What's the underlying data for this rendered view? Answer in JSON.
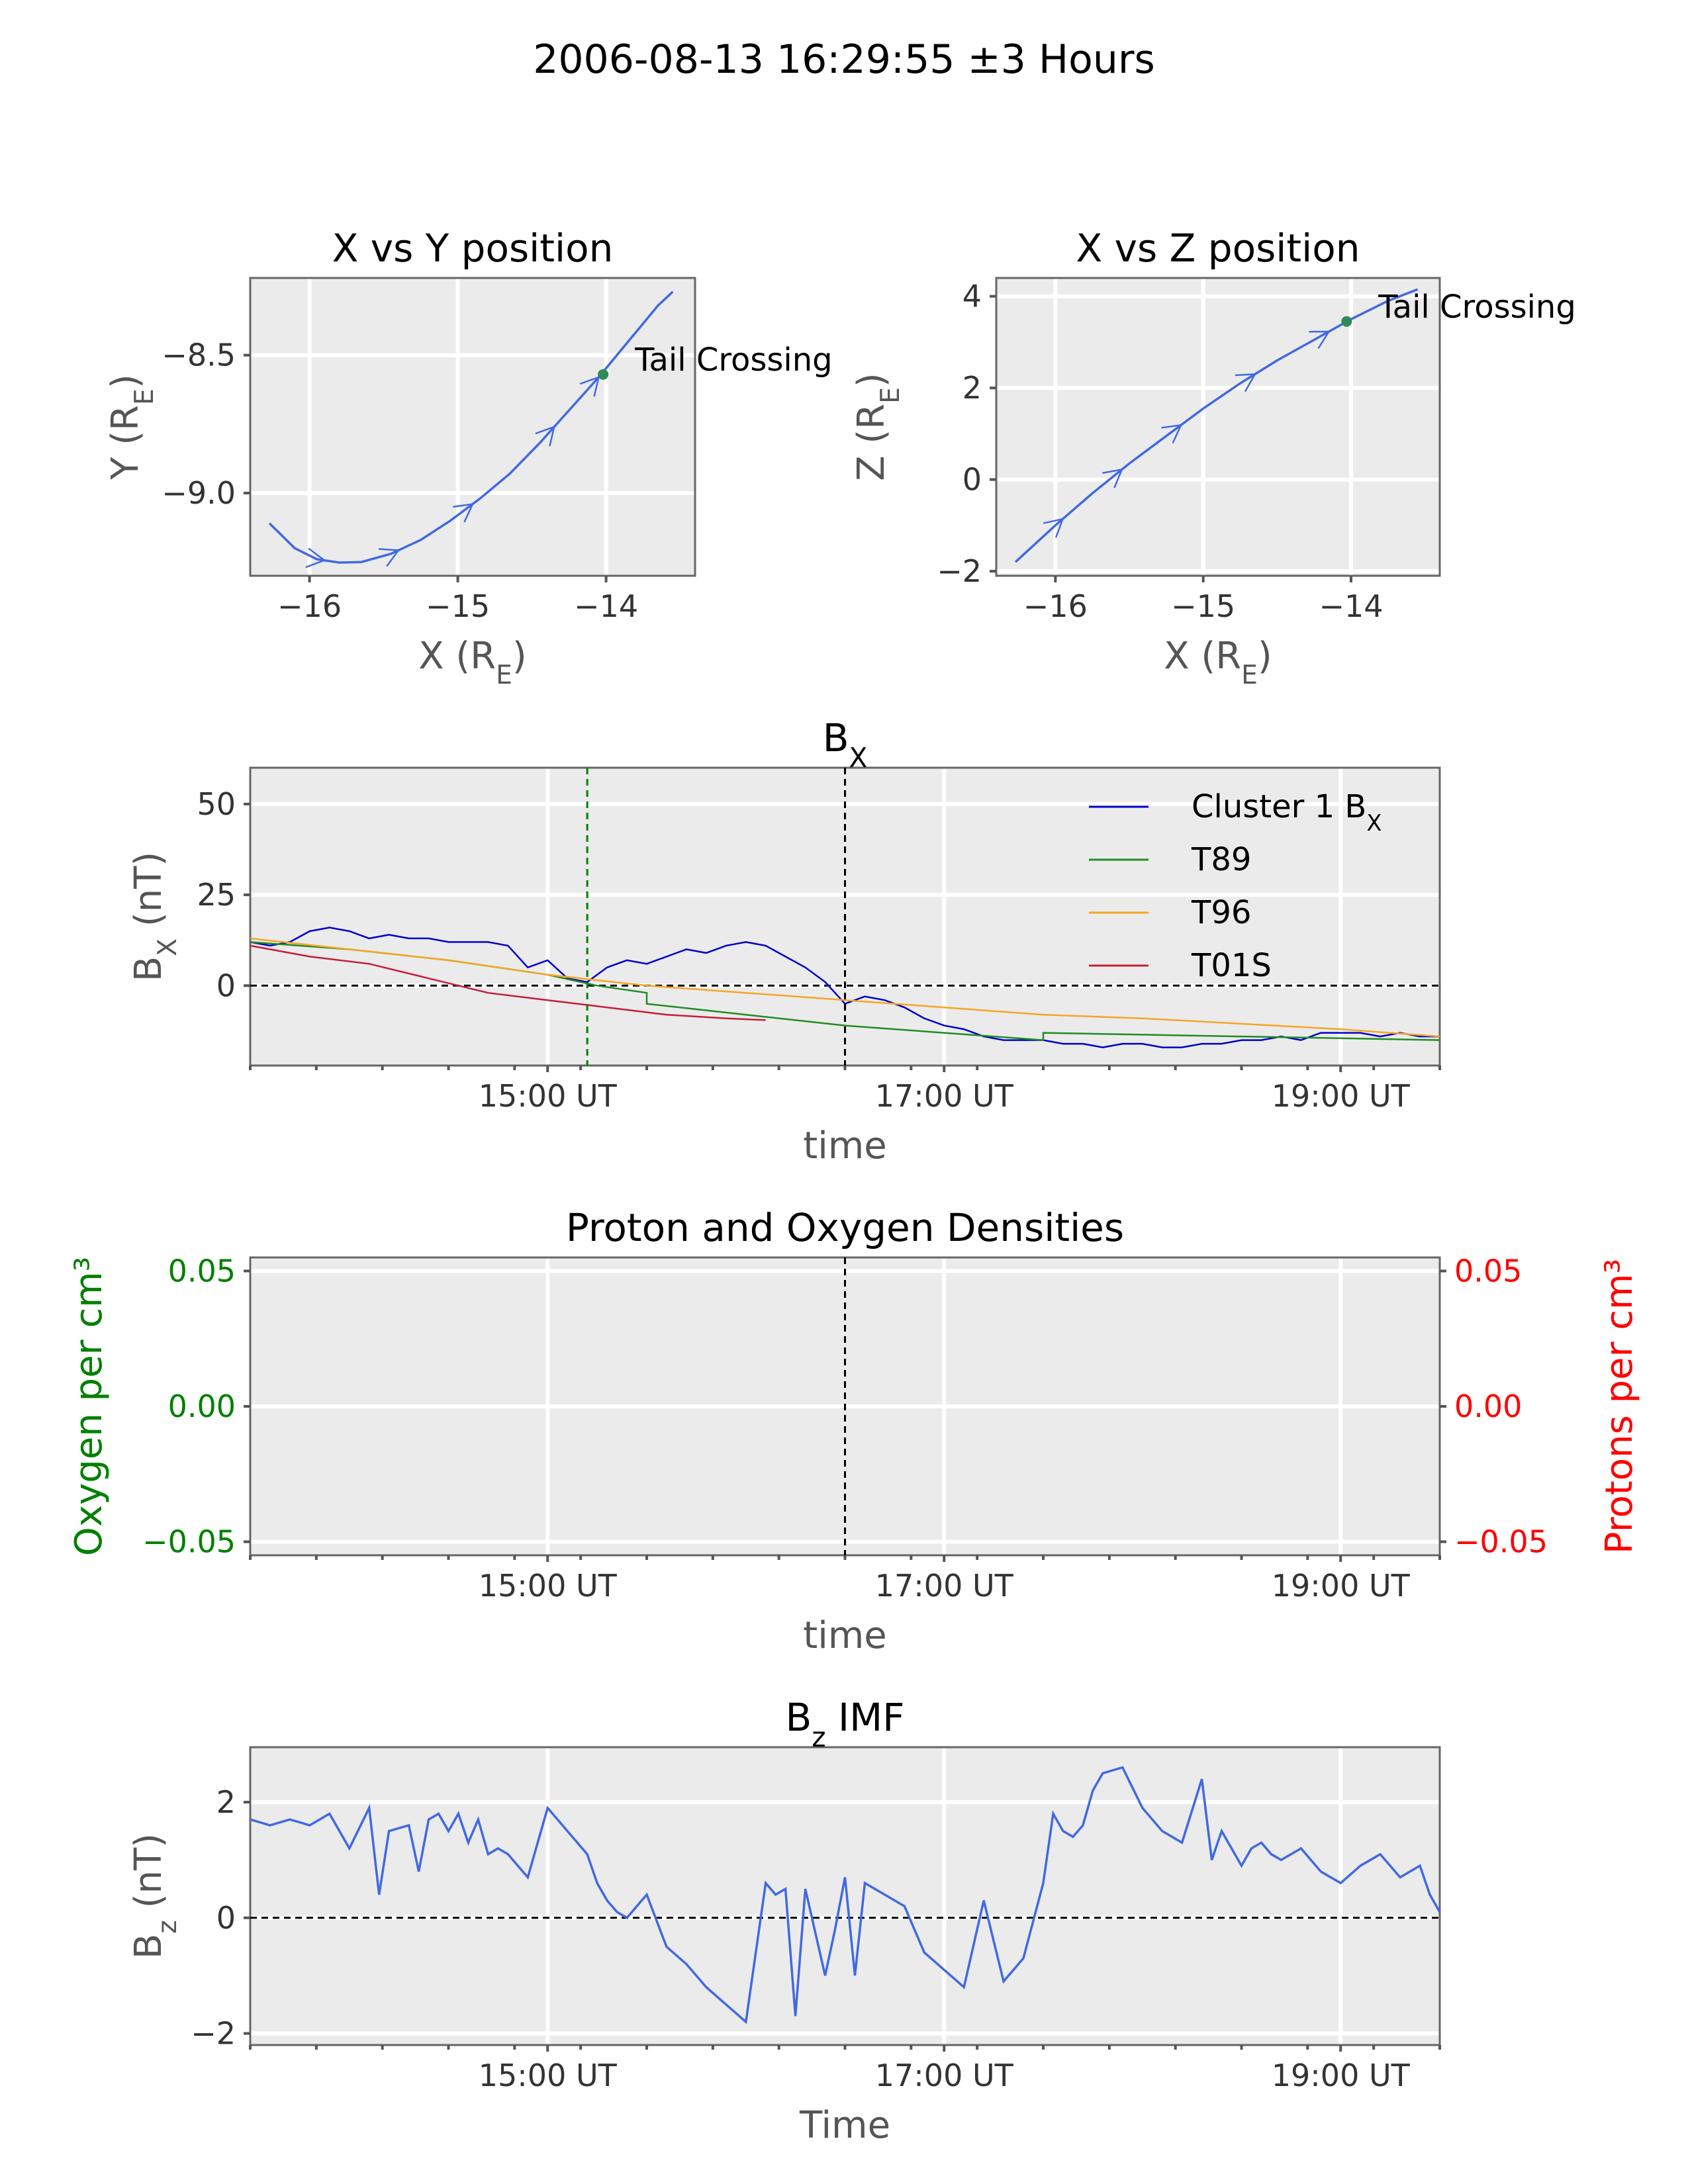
{
  "figure": {
    "suptitle": "2006-08-13 16:29:55 ±3 Hours"
  },
  "chart_data": [
    {
      "id": "xy",
      "type": "line",
      "title": "X vs Y position",
      "xlabel": "X (R_E)",
      "ylabel": "Y (R_E)",
      "xlim": [
        -16.4,
        -13.4
      ],
      "ylim": [
        -9.3,
        -8.22
      ],
      "xticks": [
        -16,
        -15,
        -14
      ],
      "xtick_labels": [
        "−16",
        "−15",
        "−14"
      ],
      "yticks": [
        -9.0,
        -8.5
      ],
      "ytick_labels": [
        "−9.0",
        "−8.5"
      ],
      "grid": true,
      "series": [
        {
          "color": "#4169e1",
          "x": [
            -16.27,
            -16.1,
            -15.95,
            -15.8,
            -15.65,
            -15.45,
            -15.25,
            -15.05,
            -14.85,
            -14.65,
            -14.45,
            -14.25,
            -14.05,
            -13.85,
            -13.65,
            -13.55
          ],
          "y": [
            -9.11,
            -9.2,
            -9.24,
            -9.252,
            -9.25,
            -9.22,
            -9.17,
            -9.1,
            -9.02,
            -8.93,
            -8.82,
            -8.7,
            -8.58,
            -8.45,
            -8.32,
            -8.27
          ]
        }
      ],
      "arrow_x": [
        -15.9,
        -15.4,
        -14.9,
        -14.35,
        -14.05
      ],
      "marker": {
        "x": -14.02,
        "y": -8.57,
        "color": "#2e8b57",
        "label": "Tail Crossing"
      }
    },
    {
      "id": "xz",
      "type": "line",
      "title": "X vs Z position",
      "xlabel": "X (R_E)",
      "ylabel": "Z (R_E)",
      "xlim": [
        -16.4,
        -13.4
      ],
      "ylim": [
        -2.1,
        4.4
      ],
      "xticks": [
        -16,
        -15,
        -14
      ],
      "xtick_labels": [
        "−16",
        "−15",
        "−14"
      ],
      "yticks": [
        -2,
        0,
        2,
        4
      ],
      "ytick_labels": [
        "−2",
        "0",
        "2",
        "4"
      ],
      "grid": true,
      "series": [
        {
          "color": "#4169e1",
          "x": [
            -16.27,
            -16.0,
            -15.75,
            -15.5,
            -15.25,
            -15.0,
            -14.75,
            -14.5,
            -14.25,
            -14.0,
            -13.75,
            -13.55
          ],
          "y": [
            -1.8,
            -1.0,
            -0.3,
            0.35,
            0.95,
            1.55,
            2.1,
            2.6,
            3.05,
            3.5,
            3.9,
            4.15
          ]
        }
      ],
      "arrow_x": [
        -15.95,
        -15.55,
        -15.15,
        -14.65,
        -14.15
      ],
      "marker": {
        "x": -14.03,
        "y": 3.45,
        "color": "#2e8b57",
        "label": "Tail Crossing"
      }
    },
    {
      "id": "bx",
      "type": "line",
      "title": "B_X",
      "xlabel": "time",
      "ylabel": "B_X (nT)",
      "xlim": [
        13.5,
        19.5
      ],
      "ylim": [
        -22,
        60
      ],
      "xticks": [
        15,
        17,
        19
      ],
      "xtick_labels": [
        "15:00 UT",
        "17:00 UT",
        "19:00 UT"
      ],
      "yticks": [
        0,
        25,
        50
      ],
      "ytick_labels": [
        "0",
        "25",
        "50"
      ],
      "grid": true,
      "hline": 0,
      "vlines": [
        {
          "x": 15.2,
          "color": "#008000"
        },
        {
          "x": 16.5,
          "color": "#000000"
        }
      ],
      "legend": {
        "loc": "upper right",
        "entries": [
          "Cluster 1 B_X",
          "T89",
          "T96",
          "T01S"
        ]
      },
      "series": [
        {
          "name": "Cluster 1 B_X",
          "color": "#0000cd",
          "x": [
            13.5,
            13.6,
            13.7,
            13.8,
            13.9,
            14.0,
            14.1,
            14.2,
            14.3,
            14.4,
            14.5,
            14.6,
            14.7,
            14.8,
            14.9,
            15.0,
            15.1,
            15.2,
            15.3,
            15.4,
            15.5,
            15.6,
            15.7,
            15.8,
            15.9,
            16.0,
            16.1,
            16.2,
            16.3,
            16.4,
            16.5,
            16.6,
            16.7,
            16.8,
            16.9,
            17.0,
            17.1,
            17.2,
            17.3,
            17.4,
            17.5,
            17.6,
            17.7,
            17.8,
            17.9,
            18.0,
            18.1,
            18.2,
            18.3,
            18.4,
            18.5,
            18.6,
            18.7,
            18.8,
            18.9,
            19.0,
            19.1,
            19.2,
            19.3,
            19.4,
            19.5
          ],
          "y": [
            12,
            11,
            12,
            15,
            16,
            15,
            13,
            14,
            13,
            13,
            12,
            12,
            12,
            11,
            5,
            7,
            2,
            1,
            5,
            7,
            6,
            8,
            10,
            9,
            11,
            12,
            11,
            8,
            5,
            1,
            -5,
            -3,
            -4,
            -6,
            -9,
            -11,
            -12,
            -14,
            -15,
            -15,
            -15,
            -16,
            -16,
            -17,
            -16,
            -16,
            -17,
            -17,
            -16,
            -16,
            -15,
            -15,
            -14,
            -15,
            -13,
            -13,
            -13,
            -14,
            -13,
            -14,
            -14
          ]
        },
        {
          "name": "T89",
          "color": "#228b22",
          "x": [
            13.5,
            14.0,
            14.5,
            15.0,
            15.25,
            15.5,
            15.5,
            16.0,
            16.5,
            17.0,
            17.5,
            17.5,
            18.0,
            18.5,
            19.0,
            19.5
          ],
          "y": [
            12,
            10,
            7,
            3,
            0,
            -2,
            -5,
            -8,
            -11,
            -13,
            -15,
            -13,
            -13.5,
            -14,
            -14.5,
            -15
          ]
        },
        {
          "name": "T96",
          "color": "#f5a623",
          "x": [
            13.5,
            14.0,
            14.5,
            15.0,
            15.5,
            16.0,
            16.5,
            17.0,
            17.5,
            18.0,
            18.5,
            19.0,
            19.5
          ],
          "y": [
            13,
            10,
            7,
            3,
            0,
            -2,
            -4,
            -6,
            -8,
            -9,
            -10.5,
            -12,
            -14
          ]
        },
        {
          "name": "T01S",
          "color": "#c41e3a",
          "x": [
            13.5,
            13.8,
            14.1,
            14.4,
            14.7,
            15.0,
            15.3,
            15.6,
            15.9,
            16.1
          ],
          "y": [
            11,
            8,
            6,
            2,
            -2,
            -4,
            -6,
            -8,
            -9,
            -9.5
          ]
        }
      ]
    },
    {
      "id": "dens",
      "type": "line",
      "title": "Proton and Oxygen Densities",
      "xlabel": "time",
      "ylabel": "Oxygen per cm^3",
      "ylabel_right": "Protons per cm^3",
      "left_color": "#008000",
      "right_color": "#ff0000",
      "xlim": [
        13.5,
        19.5
      ],
      "ylim": [
        -0.055,
        0.055
      ],
      "xticks": [
        15,
        17,
        19
      ],
      "xtick_labels": [
        "15:00 UT",
        "17:00 UT",
        "19:00 UT"
      ],
      "yticks": [
        -0.05,
        0.0,
        0.05
      ],
      "ytick_labels": [
        "−0.05",
        "0.00",
        "0.05"
      ],
      "grid": true,
      "vlines": [
        {
          "x": 16.5,
          "color": "#000000"
        }
      ],
      "series": []
    },
    {
      "id": "bz",
      "type": "line",
      "title": "B_z IMF",
      "xlabel": "Time",
      "ylabel": "B_z (nT)",
      "xlim": [
        13.5,
        19.5
      ],
      "ylim": [
        -2.2,
        2.95
      ],
      "xticks": [
        15,
        17,
        19
      ],
      "xtick_labels": [
        "15:00 UT",
        "17:00 UT",
        "19:00 UT"
      ],
      "yticks": [
        -2,
        0,
        2
      ],
      "ytick_labels": [
        "−2",
        "0",
        "2"
      ],
      "grid": true,
      "hline": 0,
      "series": [
        {
          "color": "#4169e1",
          "x": [
            13.5,
            13.6,
            13.7,
            13.8,
            13.9,
            14.0,
            14.1,
            14.15,
            14.2,
            14.3,
            14.35,
            14.4,
            14.45,
            14.5,
            14.55,
            14.6,
            14.65,
            14.7,
            14.75,
            14.8,
            14.9,
            15.0,
            15.1,
            15.2,
            15.25,
            15.3,
            15.35,
            15.4,
            15.5,
            15.6,
            15.7,
            15.8,
            15.9,
            16.0,
            16.1,
            16.15,
            16.2,
            16.25,
            16.3,
            16.4,
            16.45,
            16.5,
            16.55,
            16.6,
            16.7,
            16.8,
            16.9,
            17.0,
            17.1,
            17.2,
            17.3,
            17.4,
            17.5,
            17.55,
            17.6,
            17.65,
            17.7,
            17.75,
            17.8,
            17.9,
            18.0,
            18.1,
            18.2,
            18.3,
            18.35,
            18.4,
            18.5,
            18.55,
            18.6,
            18.65,
            18.7,
            18.8,
            18.9,
            19.0,
            19.1,
            19.2,
            19.3,
            19.4,
            19.45,
            19.5
          ],
          "y": [
            1.7,
            1.6,
            1.7,
            1.6,
            1.8,
            1.2,
            1.9,
            0.4,
            1.5,
            1.6,
            0.8,
            1.7,
            1.8,
            1.5,
            1.8,
            1.3,
            1.7,
            1.1,
            1.2,
            1.1,
            0.7,
            1.9,
            1.5,
            1.1,
            0.6,
            0.3,
            0.1,
            0.0,
            0.4,
            -0.5,
            -0.8,
            -1.2,
            -1.5,
            -1.8,
            0.6,
            0.4,
            0.5,
            -1.7,
            0.5,
            -1.0,
            -0.2,
            0.7,
            -1.0,
            0.6,
            0.4,
            0.2,
            -0.6,
            -0.9,
            -1.2,
            0.3,
            -1.1,
            -0.7,
            0.6,
            1.8,
            1.5,
            1.4,
            1.6,
            2.2,
            2.5,
            2.6,
            1.9,
            1.5,
            1.3,
            2.4,
            1.0,
            1.5,
            0.9,
            1.2,
            1.3,
            1.1,
            1.0,
            1.2,
            0.8,
            0.6,
            0.9,
            1.1,
            0.7,
            0.9,
            0.4,
            0.1
          ]
        }
      ]
    }
  ]
}
